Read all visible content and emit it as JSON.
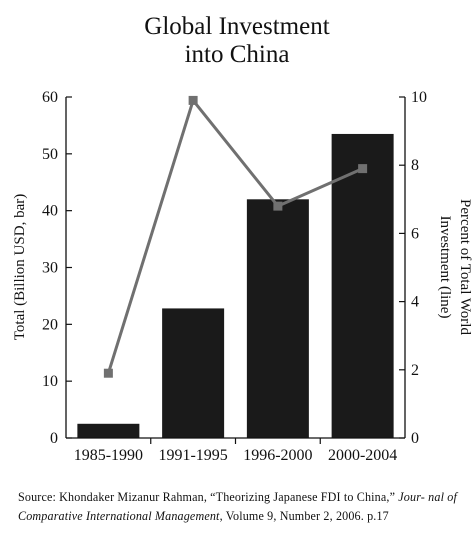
{
  "colors": {
    "background": "#ffffff",
    "bar": "#1a1a1a",
    "line": "#707070",
    "text": "#111111",
    "axis": "#111111"
  },
  "chart_data": {
    "type": "bar",
    "title_lines": [
      "Global Investment",
      "into China"
    ],
    "categories": [
      "1985-1990",
      "1991-1995",
      "1996-2000",
      "2000-2004"
    ],
    "series": [
      {
        "type": "bar",
        "axis": "left",
        "values": [
          2.5,
          22.8,
          42,
          53.5
        ]
      },
      {
        "type": "line",
        "axis": "right",
        "marker": "square",
        "values": [
          1.9,
          9.9,
          6.8,
          7.9
        ]
      }
    ],
    "left_axis": {
      "label": "Total (Billion USD, bar)",
      "min": 0,
      "max": 60,
      "ticks": [
        0,
        10,
        20,
        30,
        40,
        50,
        60
      ]
    },
    "right_axis": {
      "label_lines": [
        "Percent of Total World",
        "Investment (line)"
      ],
      "min": 0,
      "max": 10,
      "ticks": [
        0,
        2,
        4,
        6,
        8,
        10
      ]
    },
    "grid": false,
    "legend": "none"
  },
  "source": {
    "prefix": "Source: Khondaker Mizanur Rahman, “Theorizing Japanese FDI to China,”",
    "journal_start": "Jour-",
    "journal_rest": "nal of Comparative International Management",
    "suffix": ", Volume 9, Number 2, 2006. p.17"
  }
}
